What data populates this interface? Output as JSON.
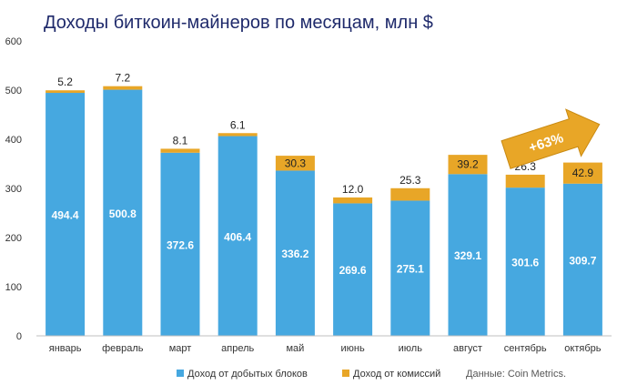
{
  "chart_data": {
    "type": "bar",
    "stacked": true,
    "title": "Доходы биткоин-майнеров по месяцам, млн $",
    "categories": [
      "январь",
      "февраль",
      "март",
      "апрель",
      "май",
      "июнь",
      "июль",
      "август",
      "сентябрь",
      "октябрь"
    ],
    "series": [
      {
        "name": "Доход от добытых блоков",
        "color": "#46a8e0",
        "values": [
          494.4,
          500.8,
          372.6,
          406.4,
          336.2,
          269.6,
          275.1,
          329.1,
          301.6,
          309.7
        ]
      },
      {
        "name": "Доход от комиссий",
        "color": "#e8a627",
        "values": [
          5.2,
          7.2,
          8.1,
          6.1,
          30.3,
          12.0,
          25.3,
          39.2,
          26.3,
          42.9
        ]
      }
    ],
    "yticks": [
      0,
      100,
      200,
      300,
      400,
      500,
      600
    ],
    "ylim": [
      0,
      600
    ],
    "grid": false,
    "legend_position": "bottom",
    "annotation": {
      "text": "+63%",
      "color": "#e8a627"
    },
    "source": "Данные: Coin Metrics."
  }
}
